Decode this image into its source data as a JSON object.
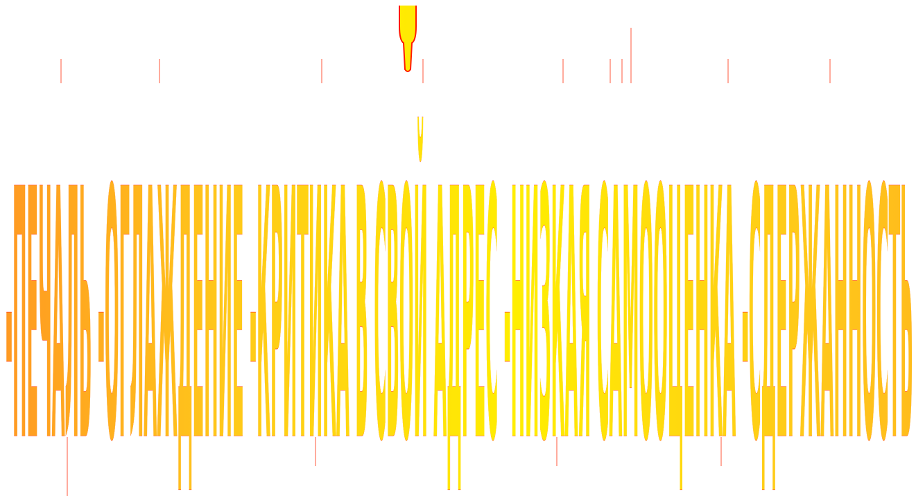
{
  "wordart": {
    "text": "-ПЕЧАЛЬ -ОГЛАЖДЕНИЕ -КРИТИКА В СВОЙ АДРЕС -НИЗКАЯ САМООЦЕНКА -СДЕРЖАННОСТЬ",
    "colors": {
      "outline": "#ff1a00",
      "fill_light": "#ffee00",
      "fill_mid": "#ffc81a",
      "fill_dark": "#ff9a22"
    }
  }
}
